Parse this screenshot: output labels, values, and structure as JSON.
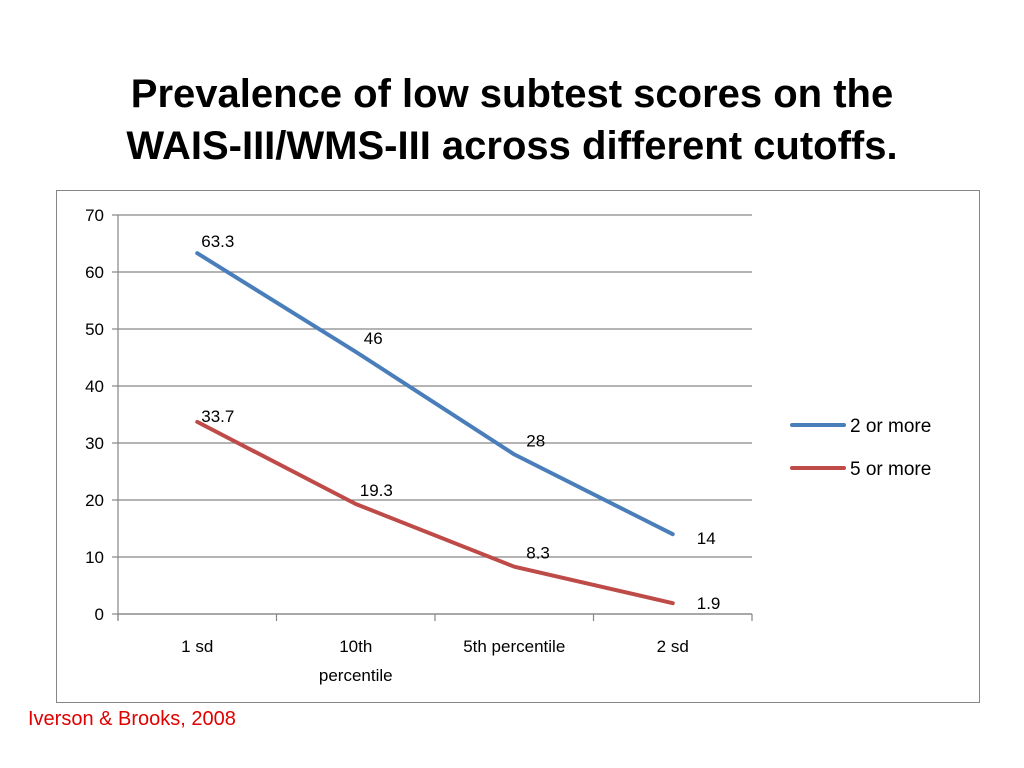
{
  "slide": {
    "title_line1": "Prevalence of low subtest scores on the",
    "title_line2": "WAIS-III/WMS-III across different cutoffs.",
    "citation": "Iverson & Brooks, 2008"
  },
  "chart_data": {
    "type": "line",
    "title": "",
    "xlabel": "",
    "ylabel": "",
    "categories": [
      "1 sd",
      "10th percentile",
      "5th percentile",
      "2 sd"
    ],
    "ylim": [
      0,
      70
    ],
    "yticks": [
      0,
      10,
      20,
      30,
      40,
      50,
      60,
      70
    ],
    "grid": true,
    "legend_position": "right",
    "series": [
      {
        "name": "2 or more",
        "values": [
          63.3,
          46,
          28,
          14
        ],
        "labels": [
          "63.3",
          "46",
          "28",
          "14"
        ],
        "color": "#4a7ebb"
      },
      {
        "name": "5 or more",
        "values": [
          33.7,
          19.3,
          8.3,
          1.9
        ],
        "labels": [
          "33.7",
          "19.3",
          "8.3",
          "1.9"
        ],
        "color": "#be4b48"
      }
    ]
  }
}
